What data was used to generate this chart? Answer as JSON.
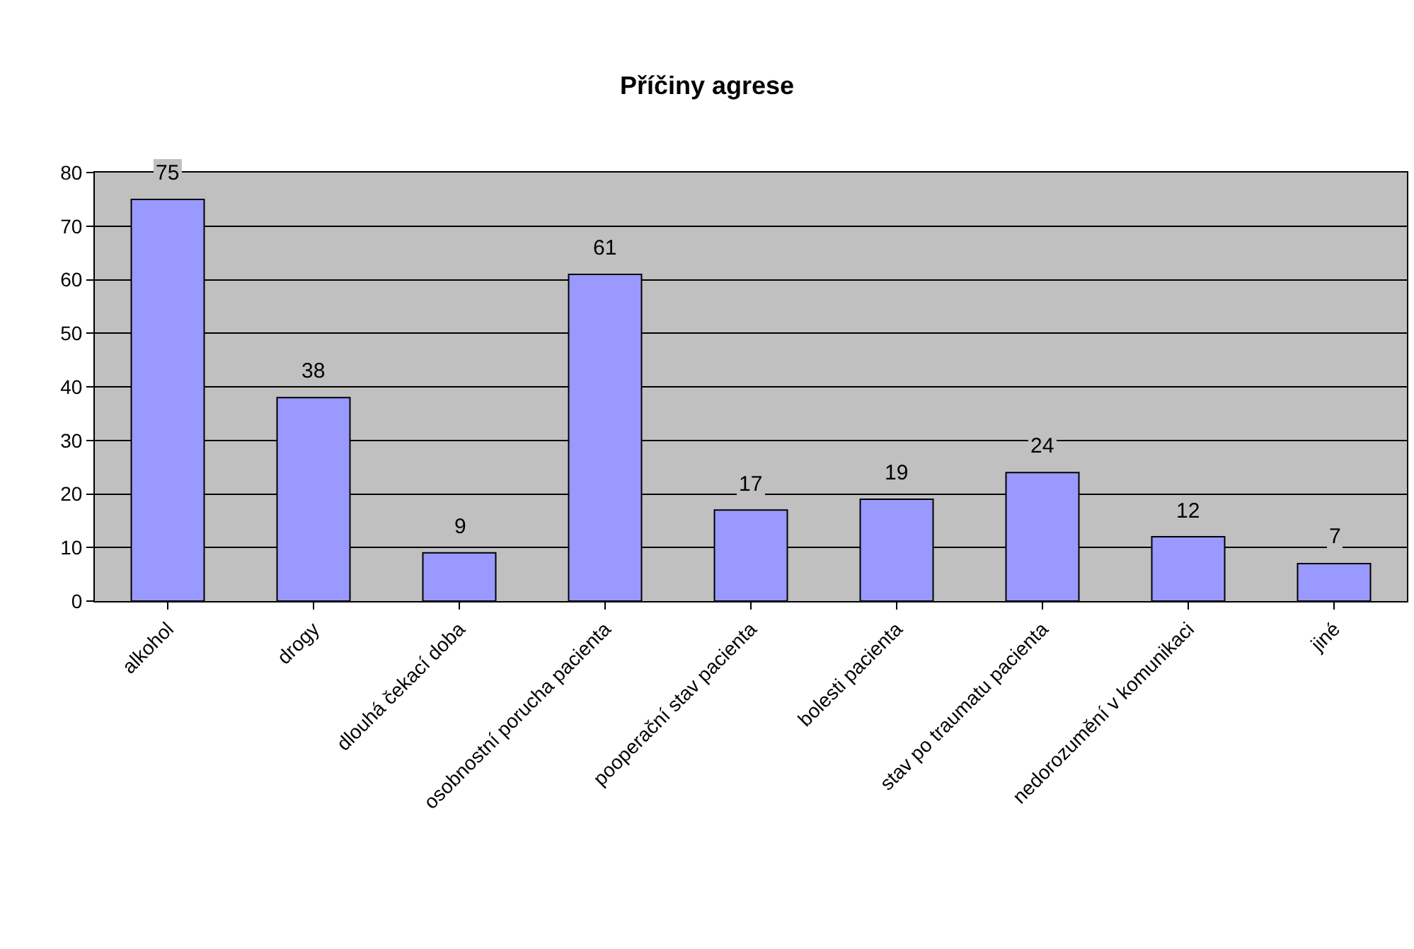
{
  "chart_data": {
    "type": "bar",
    "title": "Příčiny agrese",
    "categories": [
      "alkohol",
      "drogy",
      "dlouhá čekací doba",
      "osobnostní porucha pacienta",
      "pooperační stav pacienta",
      "bolesti pacienta",
      "stav po traumatu pacienta",
      "nedorozumění v komunikaci",
      "jiné"
    ],
    "values": [
      75,
      38,
      9,
      61,
      17,
      19,
      24,
      12,
      7
    ],
    "color": "#9999ff",
    "ylim": [
      0,
      80
    ],
    "yticks": [
      0,
      10,
      20,
      30,
      40,
      50,
      60,
      70,
      80
    ],
    "grid": "y",
    "data_labels": true
  }
}
